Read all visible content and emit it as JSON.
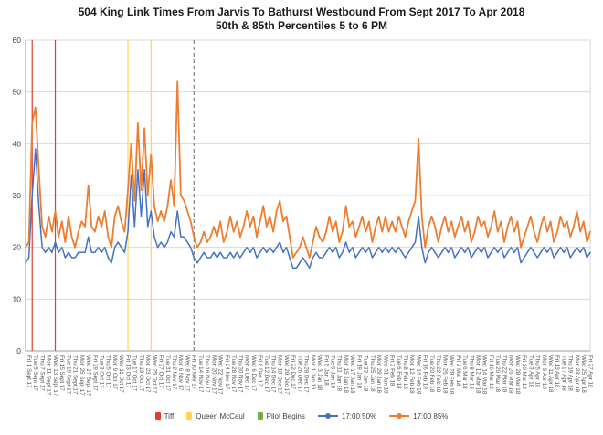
{
  "title": {
    "line1": "504 King Link Times From Jarvis To Bathurst Westbound From Sept 2017 To Apr 2018",
    "line2": "50th & 85th Percentiles 5 to 6 PM"
  },
  "axes": {
    "y_ticks": [
      0,
      10,
      20,
      30,
      40,
      50,
      60
    ],
    "label_every": 2
  },
  "colors": {
    "grid": "#d9d9d9",
    "axis": "#9b9b9b",
    "tick_text": "#404040",
    "x_tick_text": "#595959"
  },
  "legend": [
    {
      "label": "Tiff",
      "color": "#e03c31",
      "type": "box"
    },
    {
      "label": "Queen McCaul",
      "color": "#ffd34d",
      "type": "box"
    },
    {
      "label": "Pilot Begins",
      "color": "#70ad47",
      "type": "box"
    },
    {
      "label": "17:00 50%",
      "color": "#4472c4",
      "type": "line"
    },
    {
      "label": "17:00 85%",
      "color": "#ed7d31",
      "type": "line"
    }
  ],
  "chart_data": {
    "type": "line",
    "title": "504 King Link Times From Jarvis To Bathurst Westbound From Sept 2017 To Apr 2018",
    "subtitle": "50th & 85th Percentiles 5 to 6 PM",
    "ylabel": "",
    "xlabel": "",
    "ylim": [
      0,
      60
    ],
    "grid": true,
    "legend_position": "bottom",
    "x": [
      "Fri 1 Sept 17",
      "Mon 4 Sept 17",
      "Tue 5 Sept 17",
      "Wed 6 Sept 17",
      "Thu 7 Sept 17",
      "Fri 8 Sept 17",
      "Mon 11 Sept 17",
      "Tue 12 Sept 17",
      "Wed 13 Sept 17",
      "Thu 14 Sept 17",
      "Fri 15 Sept 17",
      "Mon 18 Sept 17",
      "Tue 19 Sept 17",
      "Wed 20 Sept 17",
      "Thu 21 Sept 17",
      "Fri 22 Sept 17",
      "Mon 25 Sept 17",
      "Tue 26 Sept 17",
      "Wed 27 Sept 17",
      "Thu 28 Sept 17",
      "Fri 29 Sept 17",
      "Mon 2 Oct 17",
      "Tue 3 Oct 17",
      "Wed 4 Oct 17",
      "Thu 5 Oct 17",
      "Fri 6 Oct 17",
      "Mon 9 Oct 17",
      "Tue 10 Oct 17",
      "Wed 11 Oct 17",
      "Thu 12 Oct 17",
      "Fri 13 Oct 17",
      "Mon 16 Oct 17",
      "Tue 17 Oct 17",
      "Wed 18 Oct 17",
      "Thu 19 Oct 17",
      "Fri 20 Oct 17",
      "Mon 23 Oct 17",
      "Tue 24 Oct 17",
      "Wed 25 Oct 17",
      "Thu 26 Oct 17",
      "Fri 27 Oct 17",
      "Mon 30 Oct 17",
      "Tue 31 Oct 17",
      "Wed 1 Nov 17",
      "Thu 2 Nov 17",
      "Fri 3 Nov 17",
      "Mon 6 Nov 17",
      "Tue 7 Nov 17",
      "Wed 8 Nov 17",
      "Thu 9 Nov 17",
      "Fri 10 Nov 17",
      "Mon 13 Nov 17",
      "Tue 14 Nov 17",
      "Wed 15 Nov 17",
      "Thu 16 Nov 17",
      "Fri 17 Nov 17",
      "Mon 20 Nov 17",
      "Tue 21 Nov 17",
      "Wed 22 Nov 17",
      "Thu 23 Nov 17",
      "Fri 24 Nov 17",
      "Mon 27 Nov 17",
      "Tue 28 Nov 17",
      "Wed 29 Nov 17",
      "Thu 30 Nov 17",
      "Fri 1 Dec 17",
      "Mon 4 Dec 17",
      "Tue 5 Dec 17",
      "Wed 6 Dec 17",
      "Thu 7 Dec 17",
      "Fri 8 Dec 17",
      "Mon 11 Dec 17",
      "Tue 12 Dec 17",
      "Wed 13 Dec 17",
      "Thu 14 Dec 17",
      "Fri 15 Dec 17",
      "Mon 18 Dec 17",
      "Tue 19 Dec 17",
      "Wed 20 Dec 17",
      "Thu 21 Dec 17",
      "Fri 22 Dec 17",
      "Mon 25 Dec 17",
      "Tue 26 Dec 17",
      "Wed 27 Dec 17",
      "Thu 28 Dec 17",
      "Fri 29 Dec 17",
      "Mon 1 Jan 18",
      "Tue 2 Jan 18",
      "Wed 3 Jan 18",
      "Thu 4 Jan 18",
      "Fri 5 Jan 18",
      "Mon 8 Jan 18",
      "Tue 9 Jan 18",
      "Wed 10 Jan 18",
      "Thu 11 Jan 18",
      "Fri 12 Jan 18",
      "Mon 15 Jan 18",
      "Tue 16 Jan 18",
      "Wed 17 Jan 18",
      "Thu 18 Jan 18",
      "Fri 19 Jan 18",
      "Mon 22 Jan 18",
      "Tue 23 Jan 18",
      "Wed 24 Jan 18",
      "Thu 25 Jan 18",
      "Fri 26 Jan 18",
      "Mon 29 Jan 18",
      "Tue 30 Jan 18",
      "Wed 31 Jan 18",
      "Thu 1 Feb 18",
      "Fri 2 Feb 18",
      "Mon 5 Feb 18",
      "Tue 6 Feb 18",
      "Wed 7 Feb 18",
      "Thu 8 Feb 18",
      "Fri 9 Feb 18",
      "Mon 12 Feb 18",
      "Tue 13 Feb 18",
      "Wed 14 Feb 18",
      "Thu 15 Feb 18",
      "Fri 16 Feb 18",
      "Mon 19 Feb 18",
      "Tue 20 Feb 18",
      "Wed 21 Feb 18",
      "Thu 22 Feb 18",
      "Fri 23 Feb 18",
      "Mon 26 Feb 18",
      "Tue 27 Feb 18",
      "Wed 28 Feb 18",
      "Thu 1 Mar 18",
      "Fri 2 Mar 18",
      "Mon 5 Mar 18",
      "Tue 6 Mar 18",
      "Wed 7 Mar 18",
      "Thu 8 Mar 18",
      "Fri 9 Mar 18",
      "Mon 12 Mar 18",
      "Tue 13 Mar 18",
      "Wed 14 Mar 18",
      "Thu 15 Mar 18",
      "Fri 16 Mar 18",
      "Mon 19 Mar 18",
      "Tue 20 Mar 18",
      "Wed 21 Mar 18",
      "Thu 22 Mar 18",
      "Fri 23 Mar 18",
      "Mon 26 Mar 18",
      "Tue 27 Mar 18",
      "Wed 28 Mar 18",
      "Thu 29 Mar 18",
      "Fri 30 Mar 18",
      "Mon 2 Apr 18",
      "Tue 3 Apr 18",
      "Wed 4 Apr 18",
      "Thu 5 Apr 18",
      "Fri 6 Apr 18",
      "Mon 9 Apr 18",
      "Tue 10 Apr 18",
      "Wed 11 Apr 18",
      "Thu 12 Apr 18",
      "Fri 13 Apr 18",
      "Mon 16 Apr 18",
      "Tue 17 Apr 18",
      "Wed 18 Apr 18",
      "Thu 19 Apr 18",
      "Fri 20 Apr 18",
      "Mon 23 Apr 18",
      "Tue 24 Apr 18",
      "Wed 25 Apr 18",
      "Thu 26 Apr 18",
      "Fri 27 Apr 18",
      "Mon 30 Apr 18"
    ],
    "series": [
      {
        "name": "17:00 50%",
        "color": "#4472c4",
        "values": [
          17,
          18,
          30,
          39,
          28,
          20,
          19,
          20,
          19,
          21,
          19,
          20,
          18,
          19,
          18,
          18,
          19,
          19,
          19,
          22,
          19,
          19,
          20,
          19,
          20,
          18,
          17,
          20,
          21,
          20,
          19,
          23,
          34,
          24,
          35,
          26,
          35,
          24,
          27,
          22,
          20,
          21,
          20,
          21,
          23,
          22,
          27,
          22,
          22,
          21,
          20,
          18,
          17,
          18,
          19,
          18,
          18,
          19,
          18,
          19,
          18,
          18,
          19,
          18,
          19,
          18,
          19,
          20,
          19,
          20,
          18,
          19,
          20,
          19,
          20,
          19,
          20,
          21,
          19,
          20,
          18,
          16,
          16,
          17,
          18,
          17,
          16,
          18,
          19,
          18,
          18,
          19,
          20,
          19,
          20,
          18,
          19,
          21,
          19,
          20,
          18,
          19,
          20,
          19,
          20,
          18,
          19,
          20,
          19,
          20,
          19,
          20,
          19,
          20,
          19,
          18,
          19,
          20,
          21,
          26,
          20,
          17,
          19,
          20,
          19,
          18,
          19,
          20,
          19,
          20,
          18,
          19,
          20,
          19,
          20,
          18,
          19,
          20,
          19,
          20,
          18,
          19,
          20,
          19,
          20,
          18,
          19,
          20,
          19,
          20,
          17,
          18,
          19,
          20,
          19,
          18,
          19,
          20,
          19,
          20,
          18,
          19,
          20,
          19,
          20,
          18,
          19,
          20,
          19,
          20,
          18,
          19
        ]
      },
      {
        "name": "17:00 85%",
        "color": "#ed7d31",
        "values": [
          20,
          21,
          44,
          47,
          35,
          24,
          22,
          26,
          23,
          27,
          22,
          25,
          21,
          26,
          22,
          20,
          23,
          25,
          24,
          32,
          24,
          23,
          26,
          24,
          27,
          22,
          20,
          26,
          28,
          25,
          23,
          31,
          40,
          29,
          44,
          31,
          43,
          30,
          38,
          28,
          25,
          27,
          25,
          28,
          33,
          28,
          52,
          30,
          29,
          27,
          25,
          22,
          20,
          21,
          23,
          21,
          22,
          24,
          22,
          25,
          21,
          23,
          26,
          23,
          25,
          22,
          24,
          27,
          24,
          26,
          22,
          25,
          28,
          24,
          26,
          23,
          27,
          29,
          25,
          26,
          22,
          18,
          19,
          20,
          22,
          20,
          18,
          21,
          24,
          22,
          21,
          23,
          26,
          23,
          25,
          21,
          23,
          28,
          24,
          25,
          22,
          24,
          26,
          23,
          25,
          21,
          24,
          26,
          23,
          26,
          23,
          25,
          23,
          26,
          24,
          22,
          25,
          27,
          29,
          41,
          26,
          20,
          24,
          26,
          24,
          21,
          24,
          26,
          23,
          25,
          22,
          24,
          26,
          23,
          25,
          21,
          23,
          26,
          24,
          25,
          22,
          24,
          27,
          23,
          25,
          21,
          24,
          26,
          23,
          25,
          20,
          22,
          24,
          26,
          23,
          21,
          24,
          26,
          23,
          25,
          21,
          23,
          26,
          24,
          25,
          22,
          24,
          27,
          23,
          25,
          21,
          23
        ]
      }
    ],
    "reference_lines": [
      {
        "label": "Tiff",
        "color": "#e03c31",
        "style": "solid",
        "x_index": 2
      },
      {
        "label": "Tiff",
        "color": "#e03c31",
        "style": "solid",
        "x_index": 9
      },
      {
        "label": "Queen McCaul",
        "color": "#ffd34d",
        "style": "solid",
        "x_index": 31
      },
      {
        "label": "Queen McCaul",
        "color": "#ffd34d",
        "style": "solid",
        "x_index": 38
      },
      {
        "label": "Pilot Begins",
        "color": "#808080",
        "style": "dashed",
        "x_index": 51
      }
    ]
  }
}
